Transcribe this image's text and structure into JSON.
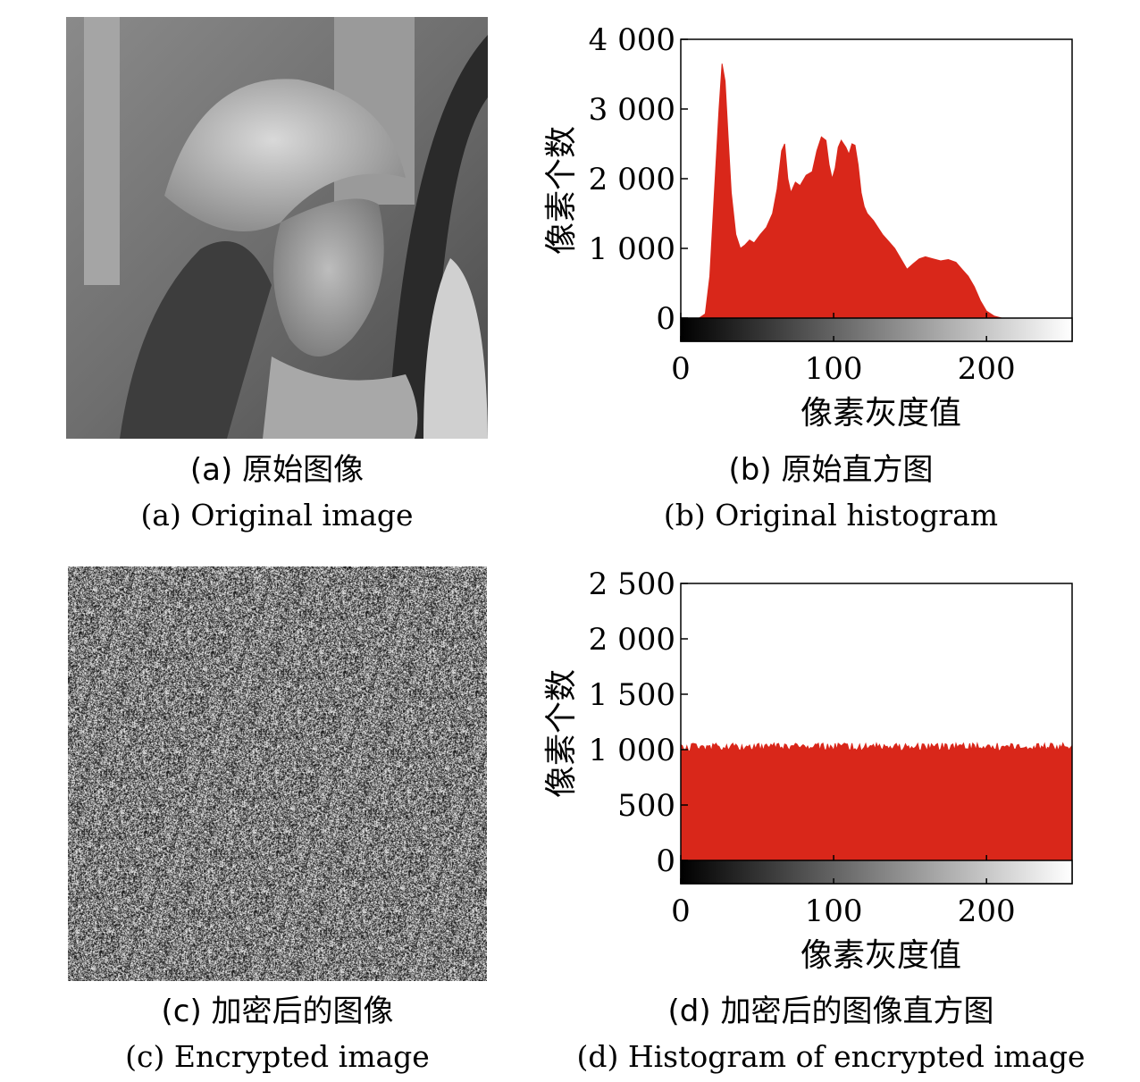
{
  "panels": [
    {
      "id": "a",
      "caption_cn": "(a) 原始图像",
      "caption_en": "(a) Original image"
    },
    {
      "id": "b",
      "caption_cn": "(b) 原始直方图",
      "caption_en": "(b) Original histogram"
    },
    {
      "id": "c",
      "caption_cn": "(c) 加密后的图像",
      "caption_en": "(c) Encrypted image"
    },
    {
      "id": "d",
      "caption_cn": "(d) 加密后的图像直方图",
      "caption_en": "(d) Histogram of encrypted image"
    }
  ],
  "colors": {
    "bar": "#d9271a",
    "axis": "#000000"
  },
  "chart_data": [
    {
      "type": "area",
      "ylabel": "像素个数",
      "xlabel": "像素灰度值",
      "xlim": [
        0,
        256
      ],
      "ylim": [
        0,
        4000
      ],
      "xticks": [
        0,
        100,
        200
      ],
      "xtick_labels": [
        "0",
        "100",
        "200"
      ],
      "yticks": [
        0,
        1000,
        2000,
        3000,
        4000
      ],
      "ytick_labels": [
        "0",
        "1 000",
        "2 000",
        "3 000",
        "4 000"
      ],
      "colorbar": "grayscale 0-255",
      "series": [
        {
          "x": [
            0,
            12,
            16,
            19,
            22,
            25,
            27,
            29,
            31,
            33,
            36,
            39,
            42,
            45,
            48,
            52,
            56,
            60,
            63,
            66,
            68,
            70,
            72,
            75,
            78,
            82,
            86,
            89,
            92,
            95,
            97,
            99,
            101,
            103,
            105,
            108,
            110,
            112,
            114,
            116,
            118,
            120,
            122,
            124,
            126,
            129,
            132,
            136,
            140,
            144,
            148,
            152,
            156,
            160,
            165,
            170,
            175,
            180,
            184,
            188,
            192,
            196,
            200,
            205,
            210,
            215,
            220,
            256
          ],
          "values": [
            0,
            0,
            60,
            600,
            1800,
            3000,
            3650,
            3400,
            2600,
            1800,
            1200,
            1000,
            1050,
            1120,
            1080,
            1200,
            1300,
            1500,
            1850,
            2400,
            2500,
            2000,
            1800,
            1950,
            1900,
            2050,
            2100,
            2400,
            2600,
            2550,
            2200,
            2000,
            2150,
            2450,
            2550,
            2450,
            2350,
            2500,
            2480,
            2200,
            1800,
            1600,
            1500,
            1450,
            1400,
            1300,
            1200,
            1100,
            1000,
            850,
            700,
            780,
            850,
            880,
            850,
            820,
            840,
            800,
            700,
            600,
            450,
            250,
            100,
            30,
            0,
            0,
            0,
            0
          ]
        }
      ]
    },
    {
      "type": "area",
      "ylabel": "像素个数",
      "xlabel": "像素灰度值",
      "xlim": [
        0,
        256
      ],
      "ylim": [
        0,
        2500
      ],
      "xticks": [
        0,
        100,
        200
      ],
      "xtick_labels": [
        "0",
        "100",
        "200"
      ],
      "yticks": [
        0,
        500,
        1000,
        1500,
        2000,
        2500
      ],
      "ytick_labels": [
        "0",
        "500",
        "1 000",
        "1 500",
        "2 000",
        "2 500"
      ],
      "colorbar": "grayscale 0-255",
      "series": [
        {
          "x": [
            0,
            256
          ],
          "values": [
            1024,
            1024
          ],
          "noise": "±40 uniform around 1024 per gray level"
        }
      ]
    }
  ]
}
